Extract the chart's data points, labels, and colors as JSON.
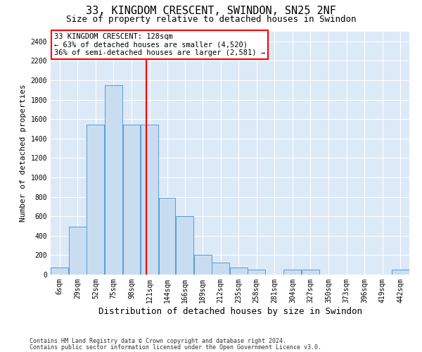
{
  "title_line1": "33, KINGDOM CRESCENT, SWINDON, SN25 2NF",
  "title_line2": "Size of property relative to detached houses in Swindon",
  "xlabel": "Distribution of detached houses by size in Swindon",
  "ylabel": "Number of detached properties",
  "footnote1": "Contains HM Land Registry data © Crown copyright and database right 2024.",
  "footnote2": "Contains public sector information licensed under the Open Government Licence v3.0.",
  "property_label": "33 KINGDOM CRESCENT: 128sqm",
  "annotation_line2": "← 63% of detached houses are smaller (4,520)",
  "annotation_line3": "36% of semi-detached houses are larger (2,581) →",
  "bar_edges": [
    6,
    29,
    52,
    75,
    98,
    121,
    144,
    166,
    189,
    212,
    235,
    258,
    281,
    304,
    327,
    350,
    373,
    396,
    419,
    442,
    465
  ],
  "bar_heights": [
    75,
    490,
    1540,
    1950,
    1540,
    1540,
    790,
    600,
    200,
    120,
    75,
    50,
    0,
    50,
    50,
    0,
    0,
    0,
    0,
    50,
    0
  ],
  "bar_color": "#c9ddf0",
  "bar_edge_color": "#5a9bd5",
  "vline_x": 128,
  "vline_color": "red",
  "ylim": [
    0,
    2500
  ],
  "yticks": [
    0,
    200,
    400,
    600,
    800,
    1000,
    1200,
    1400,
    1600,
    1800,
    2000,
    2200,
    2400
  ],
  "grid_color": "#ffffff",
  "plot_bg_color": "#dce9f7",
  "title_fontsize": 11,
  "subtitle_fontsize": 9,
  "ylabel_fontsize": 8,
  "xlabel_fontsize": 9,
  "tick_fontsize": 7,
  "annot_fontsize": 7.5
}
